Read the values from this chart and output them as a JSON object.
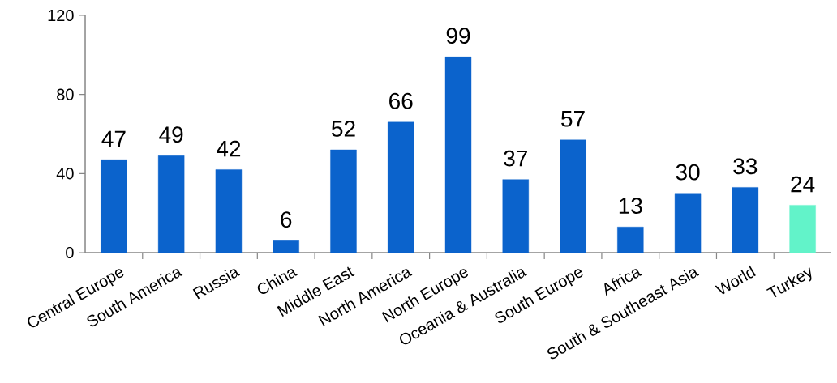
{
  "chart_data": {
    "type": "bar",
    "categories": [
      "Central Europe",
      "South America",
      "Russia",
      "China",
      "Middle East",
      "North America",
      "North Europe",
      "Oceania & Australia",
      "South Europe",
      "Africa",
      "South & Southeast Asia",
      "World",
      "Turkey"
    ],
    "values": [
      47,
      49,
      42,
      6,
      52,
      66,
      99,
      37,
      57,
      13,
      30,
      33,
      24
    ],
    "colors": [
      "#0b63cc",
      "#0b63cc",
      "#0b63cc",
      "#0b63cc",
      "#0b63cc",
      "#0b63cc",
      "#0b63cc",
      "#0b63cc",
      "#0b63cc",
      "#0b63cc",
      "#0b63cc",
      "#0b63cc",
      "#62f3c9"
    ],
    "ylim": [
      0,
      120
    ],
    "yticks": [
      0,
      40,
      80,
      120
    ],
    "data_labels": true
  }
}
